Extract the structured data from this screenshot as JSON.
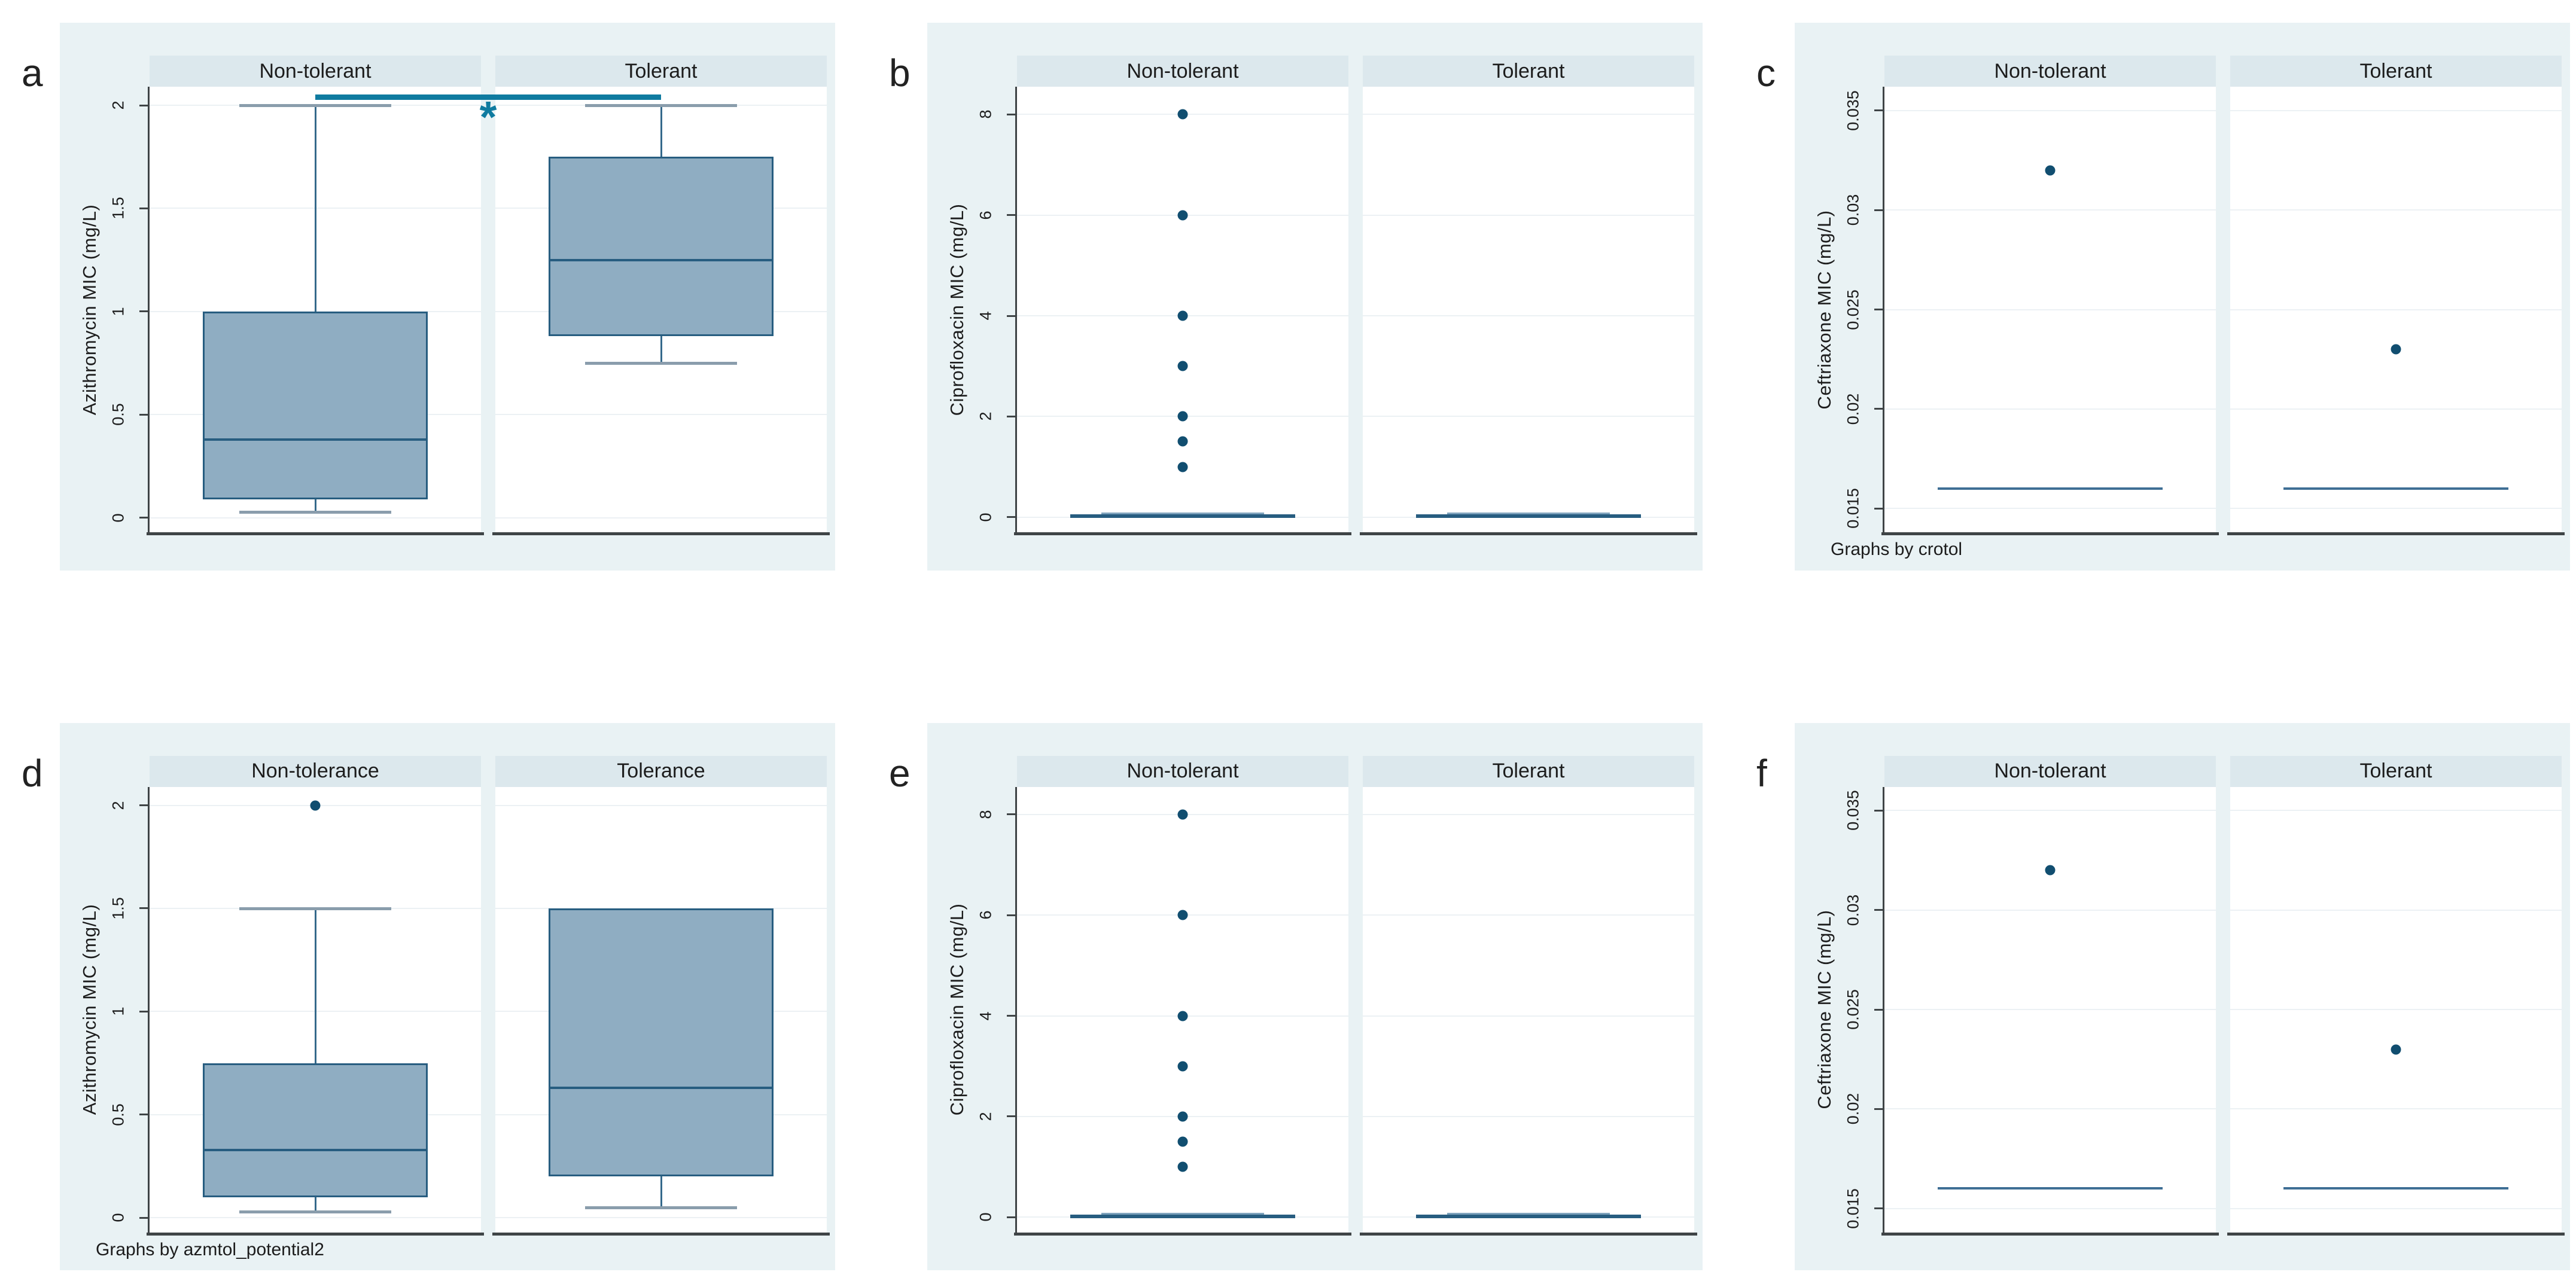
{
  "figure": {
    "background": "#ffffff",
    "kind": "faceted box plots (MIC by tolerance group)"
  },
  "colors": {
    "card_bg": "#e9f2f4",
    "strip_bg": "#dce8ed",
    "grid_line": "#ecf1f4",
    "axis": "#3f4446",
    "text": "#1c1c1c",
    "box_fill": "#8fadc2",
    "box_border": "#275d80",
    "whisker": "#35698b",
    "cap": "#8a9dac",
    "cap_blue": "#7fa3bd",
    "flat_thin": "#3f6f95",
    "dot": "#114e70",
    "sig": "#0f7ba0"
  },
  "chart_data": [
    {
      "type": "box",
      "panel_label": "a",
      "ylabel": "Azithromycin MIC (mg/L)",
      "groups": [
        "Non-tolerant",
        "Tolerant"
      ],
      "yticks": [
        0,
        0.5,
        1,
        1.5,
        2
      ],
      "ytick_labels": [
        "0",
        "0.5",
        "1",
        "1.5",
        "2"
      ],
      "ylim": [
        -0.07,
        2.09
      ],
      "grid": true,
      "series": [
        {
          "name": "Non-tolerant",
          "box": {
            "whisker_low": 0.03,
            "q1": 0.09,
            "median": 0.38,
            "q3": 1.0,
            "whisker_high": 2.0
          },
          "outliers": []
        },
        {
          "name": "Tolerant",
          "box": {
            "whisker_low": 0.75,
            "q1": 0.88,
            "median": 1.25,
            "q3": 1.75,
            "whisker_high": 2.0
          },
          "outliers": []
        }
      ],
      "significance": {
        "marker": "*",
        "y": 2.04,
        "from_group": 0,
        "to_group": 1
      },
      "note": null
    },
    {
      "type": "box",
      "panel_label": "b",
      "ylabel": "Ciprofloxacin MIC (mg/L)",
      "groups": [
        "Non-tolerant",
        "Tolerant"
      ],
      "yticks": [
        0,
        2,
        4,
        6,
        8
      ],
      "ytick_labels": [
        "0",
        "2",
        "4",
        "6",
        "8"
      ],
      "ylim": [
        -0.3,
        8.55
      ],
      "grid": true,
      "flat_style": "bold",
      "series": [
        {
          "name": "Non-tolerant",
          "flat_value": 0.02,
          "outliers": [
            1,
            1.5,
            2,
            3,
            4,
            6,
            8
          ]
        },
        {
          "name": "Tolerant",
          "flat_value": 0.02,
          "outliers": []
        }
      ],
      "note": null
    },
    {
      "type": "box",
      "panel_label": "c",
      "ylabel": "Ceftriaxone MIC (mg/L)",
      "groups": [
        "Non-tolerant",
        "Tolerant"
      ],
      "yticks": [
        0.015,
        0.02,
        0.025,
        0.03,
        0.035
      ],
      "ytick_labels": [
        "0.015",
        "0.02",
        "0.025",
        "0.03",
        "0.035"
      ],
      "ylim": [
        0.0138,
        0.0362
      ],
      "grid": true,
      "flat_style": "thin",
      "series": [
        {
          "name": "Non-tolerant",
          "flat_value": 0.016,
          "outliers": [
            0.032
          ]
        },
        {
          "name": "Tolerant",
          "flat_value": 0.016,
          "outliers": [
            0.023
          ]
        }
      ],
      "note": "Graphs by crotol"
    },
    {
      "type": "box",
      "panel_label": "d",
      "ylabel": "Azithromycin MIC (mg/L)",
      "groups": [
        "Non-tolerance",
        "Tolerance"
      ],
      "yticks": [
        0,
        0.5,
        1,
        1.5,
        2
      ],
      "ytick_labels": [
        "0",
        "0.5",
        "1",
        "1.5",
        "2"
      ],
      "ylim": [
        -0.07,
        2.09
      ],
      "grid": true,
      "series": [
        {
          "name": "Non-tolerance",
          "box": {
            "whisker_low": 0.03,
            "q1": 0.1,
            "median": 0.33,
            "q3": 0.75,
            "whisker_high": 1.5
          },
          "outliers": [
            2
          ]
        },
        {
          "name": "Tolerance",
          "box": {
            "whisker_low": 0.05,
            "q1": 0.2,
            "median": 0.63,
            "q3": 1.5,
            "whisker_high": null
          },
          "outliers": []
        }
      ],
      "note": "Graphs by azmtol_potential2"
    },
    {
      "type": "box",
      "panel_label": "e",
      "ylabel": "Ciprofloxacin MIC (mg/L)",
      "groups": [
        "Non-tolerant",
        "Tolerant"
      ],
      "yticks": [
        0,
        2,
        4,
        6,
        8
      ],
      "ytick_labels": [
        "0",
        "2",
        "4",
        "6",
        "8"
      ],
      "ylim": [
        -0.3,
        8.55
      ],
      "grid": true,
      "flat_style": "bold",
      "series": [
        {
          "name": "Non-tolerant",
          "flat_value": 0.02,
          "outliers": [
            1,
            1.5,
            2,
            3,
            4,
            6,
            8
          ]
        },
        {
          "name": "Tolerant",
          "flat_value": 0.02,
          "outliers": []
        }
      ],
      "note": null
    },
    {
      "type": "box",
      "panel_label": "f",
      "ylabel": "Ceftriaxone MIC (mg/L)",
      "groups": [
        "Non-tolerant",
        "Tolerant"
      ],
      "yticks": [
        0.015,
        0.02,
        0.025,
        0.03,
        0.035
      ],
      "ytick_labels": [
        "0.015",
        "0.02",
        "0.025",
        "0.03",
        "0.035"
      ],
      "ylim": [
        0.0138,
        0.0362
      ],
      "grid": true,
      "flat_style": "thin",
      "series": [
        {
          "name": "Non-tolerant",
          "flat_value": 0.016,
          "outliers": [
            0.032
          ]
        },
        {
          "name": "Tolerant",
          "flat_value": 0.016,
          "outliers": [
            0.023
          ]
        }
      ],
      "note": null
    }
  ]
}
